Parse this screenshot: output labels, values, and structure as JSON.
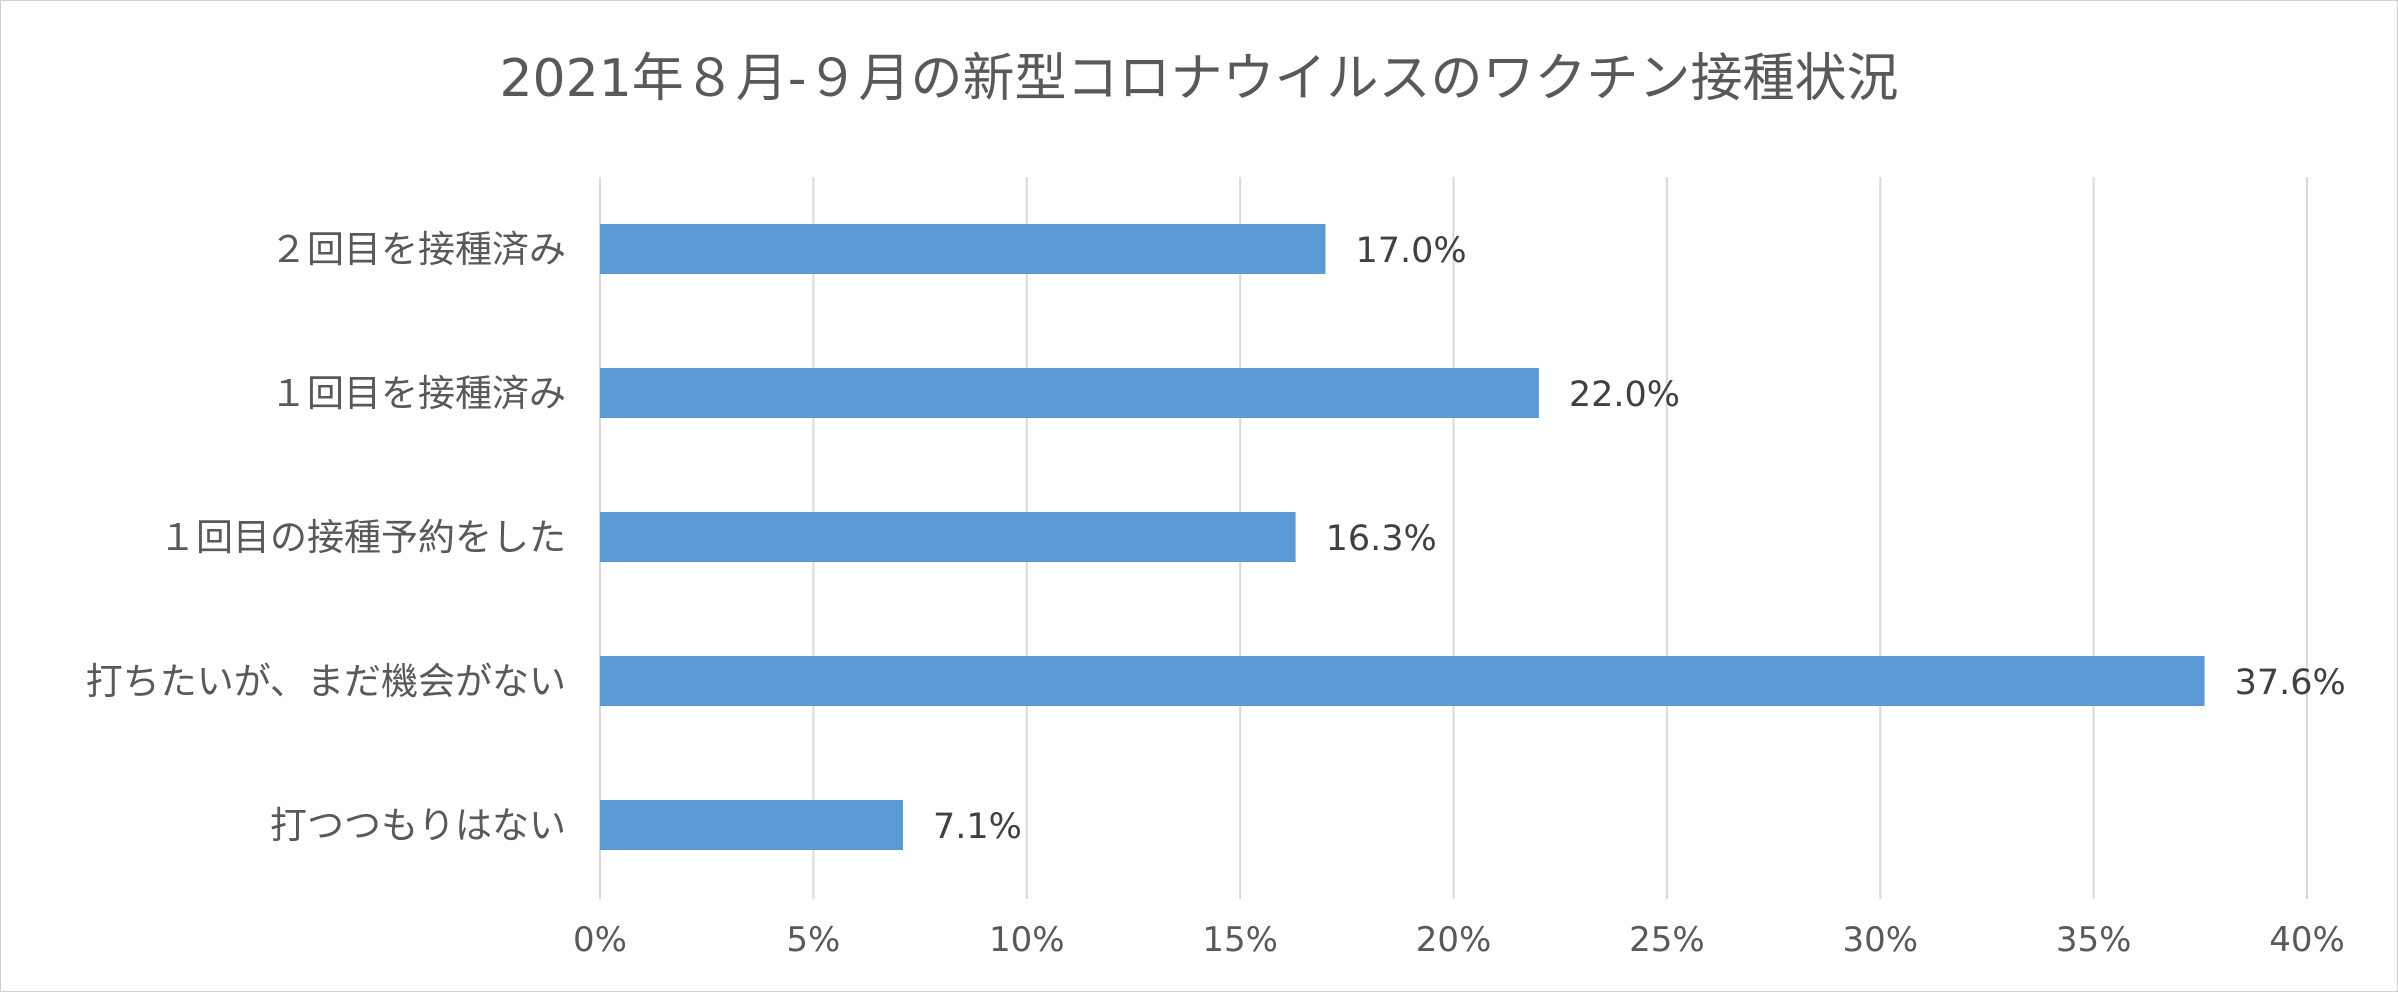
{
  "chart_data": {
    "type": "bar",
    "orientation": "horizontal",
    "title": "2021年８月-９月の新型コロナウイルスのワクチン接種状況",
    "categories": [
      "２回目を接種済み",
      "１回目を接種済み",
      "１回目の接種予約をした",
      "打ちたいが、まだ機会がない",
      "打つつもりはない"
    ],
    "values": [
      17.0,
      22.0,
      16.3,
      37.6,
      7.1
    ],
    "data_labels": [
      "17.0%",
      "22.0%",
      "16.3%",
      "37.6%",
      "7.1%"
    ],
    "xlim": [
      0,
      40
    ],
    "x_ticks": [
      0,
      5,
      10,
      15,
      20,
      25,
      30,
      35,
      40
    ],
    "x_tick_labels": [
      "0%",
      "5%",
      "10%",
      "15%",
      "20%",
      "25%",
      "30%",
      "35%",
      "40%"
    ],
    "xlabel": "",
    "ylabel": "",
    "grid": "vertical",
    "legend": "none",
    "bar_color": "#5b9bd5",
    "gridline_color": "#d9d9d9",
    "text_color": "#595959"
  }
}
